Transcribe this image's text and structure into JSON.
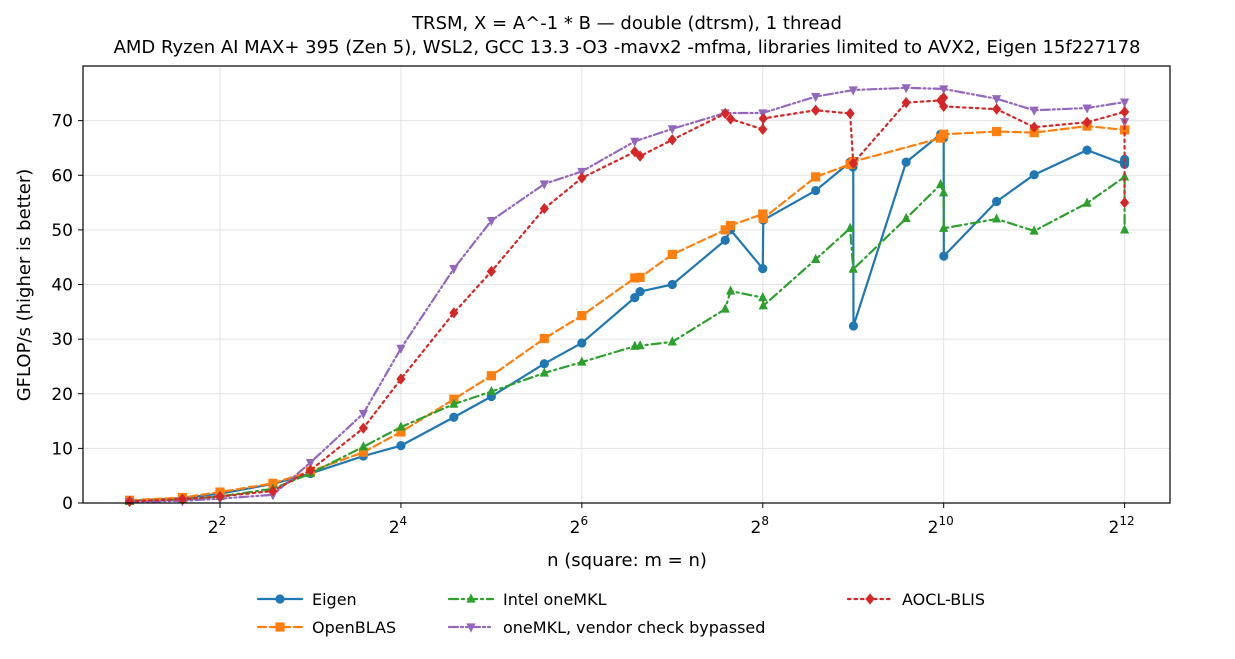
{
  "chart_data": {
    "type": "line",
    "title": "TRSM, X = A^-1 * B — double (dtrsm), 1 thread",
    "subtitle": "AMD Ryzen AI MAX+ 395 (Zen 5), WSL2, GCC 13.3 -O3 -mavx2 -mfma, libraries limited to AVX2, Eigen 15f227178",
    "xlabel": "n (square: m = n)",
    "ylabel": "GFLOP/s (higher is better)",
    "x_scale": "log2",
    "xlim": [
      1.4,
      5800
    ],
    "ylim": [
      0,
      80
    ],
    "x_ticks": [
      {
        "value": 4,
        "base": "2",
        "exp": "2"
      },
      {
        "value": 16,
        "base": "2",
        "exp": "4"
      },
      {
        "value": 64,
        "base": "2",
        "exp": "6"
      },
      {
        "value": 256,
        "base": "2",
        "exp": "8"
      },
      {
        "value": 1024,
        "base": "2",
        "exp": "10"
      },
      {
        "value": 4096,
        "base": "2",
        "exp": "12"
      }
    ],
    "y_ticks": [
      "0",
      "10",
      "20",
      "30",
      "40",
      "50",
      "60",
      "70"
    ],
    "grid": true,
    "legend_position": "bottom",
    "series": [
      {
        "name": "Eigen",
        "color": "#1f77b4",
        "marker": "circle",
        "dash": "solid",
        "x": [
          2,
          3,
          4,
          6,
          8,
          12,
          16,
          24,
          32,
          48,
          64,
          96,
          100,
          128,
          192,
          200,
          256,
          257,
          384,
          500,
          511,
          512,
          513,
          768,
          1000,
          1023,
          1024,
          1025,
          1536,
          2048,
          3072,
          4095,
          4096,
          4097
        ],
        "y": [
          0.4,
          0.9,
          1.7,
          3.5,
          5.4,
          8.6,
          10.5,
          15.7,
          19.5,
          25.5,
          29.3,
          37.6,
          38.7,
          40.0,
          48.1,
          50.0,
          42.9,
          51.8,
          57.2,
          62.4,
          61.5,
          62.0,
          32.4,
          62.4,
          67.5,
          66.8,
          67.0,
          45.2,
          55.2,
          60.1,
          64.6,
          62.0,
          62.5,
          62.9
        ]
      },
      {
        "name": "OpenBLAS",
        "color": "#ff7f0e",
        "marker": "square",
        "dash": "dashed",
        "x": [
          2,
          3,
          4,
          6,
          8,
          12,
          16,
          24,
          32,
          48,
          64,
          96,
          100,
          128,
          192,
          200,
          256,
          257,
          384,
          500,
          512,
          1000,
          1024,
          1536,
          2048,
          3072,
          4096
        ],
        "y": [
          0.5,
          1.0,
          2.0,
          3.6,
          5.8,
          9.3,
          13.0,
          19.0,
          23.3,
          30.1,
          34.3,
          41.2,
          41.3,
          45.5,
          50.0,
          50.8,
          52.9,
          52.1,
          59.7,
          62.0,
          62.5,
          66.8,
          67.5,
          68.0,
          67.8,
          69.0,
          68.3
        ]
      },
      {
        "name": "Intel oneMKL",
        "color": "#2ca02c",
        "marker": "triangle-up",
        "dash": "dashdot",
        "x": [
          2,
          3,
          4,
          6,
          8,
          12,
          16,
          24,
          32,
          48,
          64,
          96,
          100,
          128,
          192,
          200,
          256,
          257,
          384,
          500,
          512,
          768,
          1000,
          1023,
          1024,
          1536,
          2048,
          3072,
          4095,
          4096
        ],
        "y": [
          0.3,
          0.6,
          1.2,
          2.6,
          5.4,
          10.3,
          13.9,
          18.1,
          20.4,
          23.8,
          25.8,
          28.7,
          28.8,
          29.5,
          35.5,
          38.8,
          37.6,
          36.1,
          44.6,
          50.3,
          42.8,
          52.1,
          58.3,
          56.8,
          50.3,
          52.0,
          49.8,
          54.9,
          59.7,
          50.0
        ]
      },
      {
        "name": "oneMKL, vendor check bypassed",
        "color": "#9467bd",
        "marker": "triangle-down",
        "dash": "dashdotdot",
        "x": [
          2,
          3,
          4,
          6,
          8,
          12,
          16,
          24,
          32,
          48,
          64,
          96,
          128,
          192,
          256,
          384,
          512,
          768,
          1024,
          1536,
          2048,
          3072,
          4096,
          4097
        ],
        "y": [
          0.2,
          0.4,
          0.8,
          1.5,
          7.4,
          16.4,
          28.3,
          42.9,
          51.7,
          58.4,
          60.7,
          66.2,
          68.5,
          71.4,
          71.4,
          74.4,
          75.6,
          76.0,
          75.8,
          74.0,
          71.9,
          72.3,
          73.4,
          69.8
        ]
      },
      {
        "name": "AOCL-BLIS",
        "color": "#d62728",
        "marker": "diamond",
        "dash": "dotted",
        "x": [
          2,
          3,
          4,
          6,
          8,
          12,
          16,
          24,
          32,
          48,
          64,
          96,
          100,
          128,
          192,
          200,
          256,
          257,
          384,
          500,
          512,
          768,
          1000,
          1023,
          1024,
          1536,
          2048,
          3072,
          4095,
          4096
        ],
        "y": [
          0.3,
          0.7,
          1.2,
          2.2,
          6.0,
          13.7,
          22.7,
          34.8,
          42.4,
          53.9,
          59.5,
          64.3,
          63.5,
          66.5,
          71.3,
          70.3,
          68.4,
          70.4,
          71.9,
          71.3,
          62.2,
          73.3,
          73.7,
          74.2,
          72.6,
          72.1,
          68.8,
          69.7,
          71.6,
          55.0
        ]
      }
    ]
  }
}
